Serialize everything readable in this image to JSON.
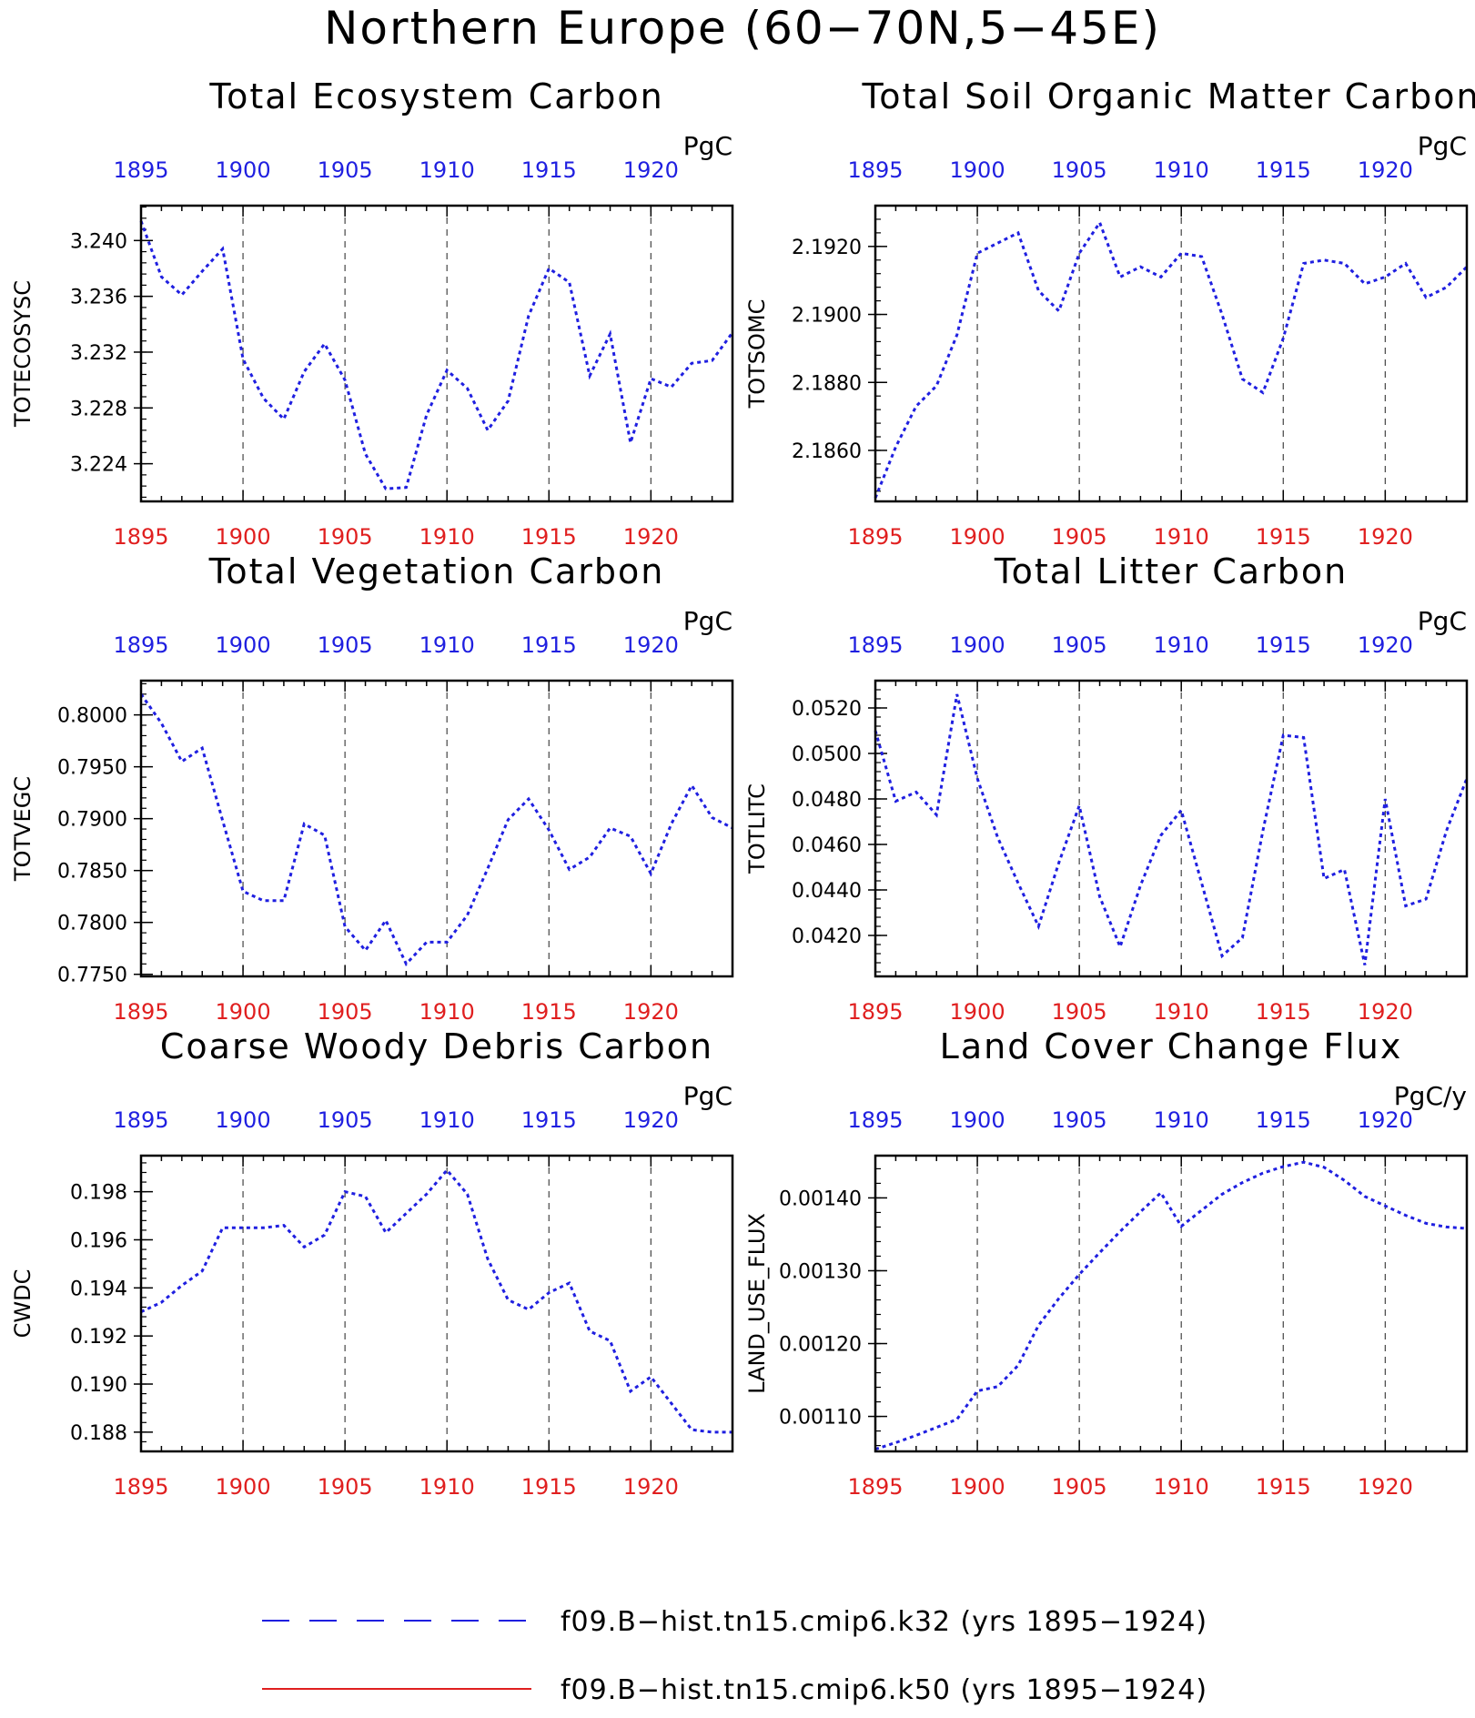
{
  "title": "Northern Europe (60−70N,5−45E)",
  "colors": {
    "series_line": "#1f1fe0",
    "top_axis": "#1f1fe0",
    "bottom_axis": "#e01f1f",
    "red_line": "#e01f1f"
  },
  "x_ticks": [
    "1895",
    "1900",
    "1905",
    "1910",
    "1915",
    "1920"
  ],
  "chart_data": [
    {
      "type": "line",
      "title": "Total Ecosystem Carbon",
      "units": "PgC",
      "ylabel": "TOTECOSYSC",
      "xlim": [
        1895,
        1924
      ],
      "ylim": [
        3.2213,
        3.2425
      ],
      "yticks": [
        3.224,
        3.228,
        3.232,
        3.236,
        3.24
      ],
      "ytick_labels": [
        "3.224",
        "3.228",
        "3.232",
        "3.236",
        "3.240"
      ],
      "x": [
        1895,
        1896,
        1897,
        1898,
        1899,
        1900,
        1901,
        1902,
        1903,
        1904,
        1905,
        1906,
        1907,
        1908,
        1909,
        1910,
        1911,
        1912,
        1913,
        1914,
        1915,
        1916,
        1917,
        1918,
        1919,
        1920,
        1921,
        1922,
        1923,
        1924
      ],
      "series": [
        {
          "name": "f09.B−hist.tn15.cmip6.k32",
          "values": [
            3.2414,
            3.2374,
            3.2361,
            3.2378,
            3.2394,
            3.2315,
            3.2287,
            3.2272,
            3.2306,
            3.2326,
            3.23,
            3.2247,
            3.2222,
            3.2223,
            3.2275,
            3.2307,
            3.2294,
            3.2264,
            3.2285,
            3.2346,
            3.238,
            3.237,
            3.2303,
            3.2333,
            3.2255,
            3.2301,
            3.2295,
            3.2312,
            3.2314,
            3.2334
          ]
        }
      ],
      "grid": "vertical-dashed"
    },
    {
      "type": "line",
      "title": "Total Soil Organic Matter Carbon",
      "units": "PgC",
      "ylabel": "TOTSOMC",
      "xlim": [
        1895,
        1924
      ],
      "ylim": [
        2.1845,
        2.1932
      ],
      "yticks": [
        2.186,
        2.188,
        2.19,
        2.192
      ],
      "ytick_labels": [
        "2.1860",
        "2.1880",
        "2.1900",
        "2.1920"
      ],
      "x": [
        1895,
        1896,
        1897,
        1898,
        1899,
        1900,
        1901,
        1902,
        1903,
        1904,
        1905,
        1906,
        1907,
        1908,
        1909,
        1910,
        1911,
        1912,
        1913,
        1914,
        1915,
        1916,
        1917,
        1918,
        1919,
        1920,
        1921,
        1922,
        1923,
        1924
      ],
      "series": [
        {
          "name": "f09.B−hist.tn15.cmip6.k32",
          "values": [
            2.1846,
            2.1861,
            2.1873,
            2.1879,
            2.1894,
            2.1918,
            2.1921,
            2.1924,
            2.1907,
            2.1901,
            2.1918,
            2.1927,
            2.1911,
            2.1914,
            2.1911,
            2.1918,
            2.1917,
            2.19,
            2.1881,
            2.1877,
            2.1893,
            2.1915,
            2.1916,
            2.1915,
            2.1909,
            2.1911,
            2.1915,
            2.1905,
            2.1908,
            2.1914
          ]
        }
      ],
      "grid": "vertical-dashed"
    },
    {
      "type": "line",
      "title": "Total Vegetation Carbon",
      "units": "PgC",
      "ylabel": "TOTVEGC",
      "xlim": [
        1895,
        1924
      ],
      "ylim": [
        0.7748,
        0.8033
      ],
      "yticks": [
        0.775,
        0.78,
        0.785,
        0.79,
        0.795,
        0.8
      ],
      "ytick_labels": [
        "0.7750",
        "0.7800",
        "0.7850",
        "0.7900",
        "0.7950",
        "0.8000"
      ],
      "x": [
        1895,
        1896,
        1897,
        1898,
        1899,
        1900,
        1901,
        1902,
        1903,
        1904,
        1905,
        1906,
        1907,
        1908,
        1909,
        1910,
        1911,
        1912,
        1913,
        1914,
        1915,
        1916,
        1917,
        1918,
        1919,
        1920,
        1921,
        1922,
        1923,
        1924
      ],
      "series": [
        {
          "name": "f09.B−hist.tn15.cmip6.k32",
          "values": [
            0.802,
            0.7992,
            0.7955,
            0.7968,
            0.7898,
            0.783,
            0.7821,
            0.7821,
            0.7895,
            0.7884,
            0.7796,
            0.7773,
            0.7802,
            0.776,
            0.7781,
            0.7781,
            0.7807,
            0.7852,
            0.7899,
            0.7919,
            0.7889,
            0.7851,
            0.7863,
            0.7891,
            0.7883,
            0.7847,
            0.7895,
            0.7932,
            0.7901,
            0.7891
          ]
        }
      ],
      "grid": "vertical-dashed"
    },
    {
      "type": "line",
      "title": "Total Litter Carbon",
      "units": "PgC",
      "ylabel": "TOTLITC",
      "xlim": [
        1895,
        1924
      ],
      "ylim": [
        0.0402,
        0.0532
      ],
      "yticks": [
        0.042,
        0.044,
        0.046,
        0.048,
        0.05,
        0.052
      ],
      "ytick_labels": [
        "0.0420",
        "0.0440",
        "0.0460",
        "0.0480",
        "0.0500",
        "0.0520"
      ],
      "x": [
        1895,
        1896,
        1897,
        1898,
        1899,
        1900,
        1901,
        1902,
        1903,
        1904,
        1905,
        1906,
        1907,
        1908,
        1909,
        1910,
        1911,
        1912,
        1913,
        1914,
        1915,
        1916,
        1917,
        1918,
        1919,
        1920,
        1921,
        1922,
        1923,
        1924
      ],
      "series": [
        {
          "name": "f09.B−hist.tn15.cmip6.k32",
          "values": [
            0.051,
            0.0479,
            0.0483,
            0.0473,
            0.0526,
            0.0489,
            0.0463,
            0.0443,
            0.0424,
            0.0452,
            0.0477,
            0.0437,
            0.0415,
            0.0442,
            0.0464,
            0.0475,
            0.0443,
            0.0411,
            0.0419,
            0.0466,
            0.0508,
            0.0507,
            0.0445,
            0.0449,
            0.0407,
            0.048,
            0.0433,
            0.0436,
            0.0466,
            0.0489
          ]
        }
      ],
      "grid": "vertical-dashed"
    },
    {
      "type": "line",
      "title": "Coarse Woody Debris Carbon",
      "units": "PgC",
      "ylabel": "CWDC",
      "xlim": [
        1895,
        1924
      ],
      "ylim": [
        0.1872,
        0.1995
      ],
      "yticks": [
        0.188,
        0.19,
        0.192,
        0.194,
        0.196,
        0.198
      ],
      "ytick_labels": [
        "0.188",
        "0.190",
        "0.192",
        "0.194",
        "0.196",
        "0.198"
      ],
      "x": [
        1895,
        1896,
        1897,
        1898,
        1899,
        1900,
        1901,
        1902,
        1903,
        1904,
        1905,
        1906,
        1907,
        1908,
        1909,
        1910,
        1911,
        1912,
        1913,
        1914,
        1915,
        1916,
        1917,
        1918,
        1919,
        1920,
        1921,
        1922,
        1923,
        1924
      ],
      "series": [
        {
          "name": "f09.B−hist.tn15.cmip6.k32",
          "values": [
            0.193,
            0.1934,
            0.1941,
            0.1947,
            0.1965,
            0.1965,
            0.1965,
            0.1966,
            0.1957,
            0.1962,
            0.198,
            0.1978,
            0.1963,
            0.1971,
            0.1979,
            0.1989,
            0.1979,
            0.1952,
            0.1935,
            0.1931,
            0.1938,
            0.1942,
            0.1922,
            0.1918,
            0.1897,
            0.1903,
            0.1892,
            0.1881,
            0.188,
            0.188
          ]
        }
      ],
      "grid": "vertical-dashed"
    },
    {
      "type": "line",
      "title": "Land Cover Change Flux",
      "units": "PgC/y",
      "ylabel": "LAND_USE_FLUX",
      "xlim": [
        1895,
        1924
      ],
      "ylim": [
        0.001052,
        0.001458
      ],
      "yticks": [
        0.0011,
        0.0012,
        0.0013,
        0.0014
      ],
      "ytick_labels": [
        "0.00110",
        "0.00120",
        "0.00130",
        "0.00140"
      ],
      "x": [
        1895,
        1896,
        1897,
        1898,
        1899,
        1900,
        1901,
        1902,
        1903,
        1904,
        1905,
        1906,
        1907,
        1908,
        1909,
        1910,
        1911,
        1912,
        1913,
        1914,
        1915,
        1916,
        1917,
        1918,
        1919,
        1920,
        1921,
        1922,
        1923,
        1924
      ],
      "series": [
        {
          "name": "f09.B−hist.tn15.cmip6.k32",
          "values": [
            0.001055,
            0.001064,
            0.001074,
            0.001085,
            0.001096,
            0.001135,
            0.001141,
            0.00117,
            0.001225,
            0.001262,
            0.001295,
            0.001325,
            0.001354,
            0.001381,
            0.001407,
            0.001361,
            0.001383,
            0.001405,
            0.001421,
            0.001434,
            0.001443,
            0.001449,
            0.001442,
            0.001424,
            0.001402,
            0.001389,
            0.001376,
            0.001365,
            0.00136,
            0.001358
          ]
        }
      ],
      "grid": "vertical-dashed"
    }
  ],
  "legend": [
    {
      "label": "f09.B−hist.tn15.cmip6.k32 (yrs 1895−1924)",
      "color": "#1f1fe0",
      "style": "dashed"
    },
    {
      "label": "f09.B−hist.tn15.cmip6.k50 (yrs 1895−1924)",
      "color": "#e01f1f",
      "style": "solid"
    }
  ]
}
